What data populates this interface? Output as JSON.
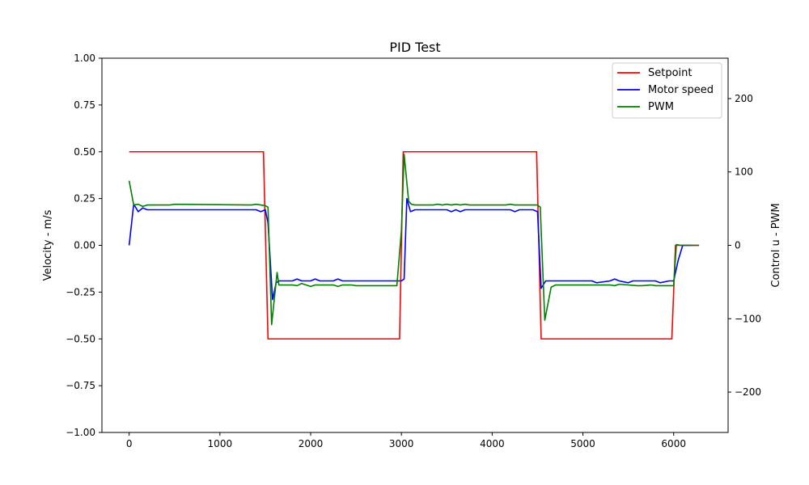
{
  "chart_data": {
    "type": "line",
    "title": "PID Test",
    "xlabel": "",
    "ylabel": "Velocity - m/s",
    "y2label": "Control u - PWM",
    "xlim": [
      -300,
      6600
    ],
    "ylim": [
      -1.0,
      1.0
    ],
    "y2lim": [
      -255,
      255
    ],
    "x_ticks": [
      0,
      1000,
      2000,
      3000,
      4000,
      5000,
      6000
    ],
    "y_ticks": [
      -1.0,
      -0.75,
      -0.5,
      -0.25,
      0.0,
      0.25,
      0.5,
      0.75,
      1.0
    ],
    "y_tick_labels": [
      "−1.00",
      "−0.75",
      "−0.50",
      "−0.25",
      "0.00",
      "0.25",
      "0.50",
      "0.75",
      "1.00"
    ],
    "y2_ticks": [
      -200,
      -100,
      0,
      100,
      200
    ],
    "y2_tick_labels": [
      "−200",
      "−100",
      "0",
      "100",
      "200"
    ],
    "grid": false,
    "legend_position": "top-right",
    "series": [
      {
        "name": "Setpoint",
        "color": "#ff0000",
        "axis": "left",
        "x": [
          0,
          1480,
          1530,
          2980,
          3020,
          4490,
          4540,
          5980,
          6020,
          6280
        ],
        "y": [
          0.5,
          0.5,
          -0.5,
          -0.5,
          0.5,
          0.5,
          -0.5,
          -0.5,
          0.0,
          0.0
        ]
      },
      {
        "name": "Motor speed",
        "color": "#0000ff",
        "axis": "left",
        "x": [
          0,
          50,
          100,
          150,
          200,
          1400,
          1450,
          1500,
          1530,
          1580,
          1620,
          1650,
          1800,
          1850,
          1900,
          2000,
          2050,
          2100,
          2250,
          2300,
          2350,
          3000,
          3030,
          3060,
          3100,
          3150,
          3200,
          3500,
          3550,
          3600,
          3650,
          3700,
          3750,
          4200,
          4250,
          4300,
          4450,
          4500,
          4540,
          4590,
          4630,
          4680,
          5100,
          5150,
          5300,
          5350,
          5400,
          5500,
          5550,
          5800,
          5850,
          5950,
          6000,
          6050,
          6100,
          6200
        ],
        "y": [
          0.0,
          0.22,
          0.18,
          0.2,
          0.19,
          0.19,
          0.18,
          0.19,
          0.12,
          -0.29,
          -0.2,
          -0.19,
          -0.19,
          -0.18,
          -0.19,
          -0.19,
          -0.18,
          -0.19,
          -0.19,
          -0.18,
          -0.19,
          -0.19,
          -0.18,
          0.25,
          0.18,
          0.19,
          0.19,
          0.19,
          0.18,
          0.19,
          0.18,
          0.19,
          0.19,
          0.19,
          0.18,
          0.19,
          0.19,
          0.18,
          -0.23,
          -0.19,
          -0.19,
          -0.19,
          -0.19,
          -0.2,
          -0.19,
          -0.18,
          -0.19,
          -0.2,
          -0.19,
          -0.19,
          -0.2,
          -0.19,
          -0.19,
          -0.08,
          0.0,
          0.0
        ]
      },
      {
        "name": "PWM",
        "color": "#008000",
        "axis": "right",
        "x": [
          0,
          50,
          100,
          150,
          200,
          450,
          500,
          1350,
          1400,
          1450,
          1500,
          1530,
          1570,
          1630,
          1650,
          1800,
          1850,
          1900,
          2000,
          2050,
          2250,
          2300,
          2350,
          2450,
          2500,
          2950,
          3000,
          3030,
          3080,
          3110,
          3150,
          3200,
          3350,
          3400,
          3450,
          3500,
          3550,
          3600,
          3650,
          3700,
          3750,
          4150,
          4200,
          4250,
          4500,
          4530,
          4580,
          4650,
          4700,
          5300,
          5350,
          5400,
          5600,
          5650,
          5750,
          5800,
          6000,
          6030,
          6080,
          6280
        ],
        "y": [
          88,
          55,
          56,
          53,
          55,
          55,
          56,
          55,
          56,
          55,
          54,
          52,
          -108,
          -37,
          -54,
          -54,
          -55,
          -52,
          -56,
          -54,
          -54,
          -56,
          -54,
          -54,
          -55,
          -55,
          20,
          124,
          60,
          56,
          55,
          55,
          55,
          56,
          55,
          56,
          55,
          56,
          55,
          56,
          55,
          55,
          56,
          55,
          55,
          52,
          -102,
          -57,
          -54,
          -54,
          -55,
          -53,
          -55,
          -55,
          -54,
          -55,
          -55,
          1,
          0,
          0
        ]
      }
    ]
  }
}
